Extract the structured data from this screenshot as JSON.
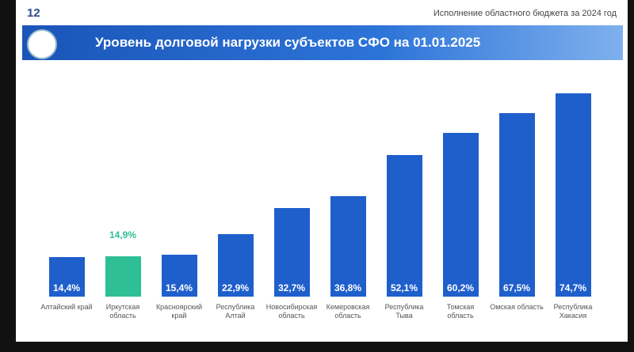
{
  "slide_number": "12",
  "header_note": "Исполнение областного бюджета за 2024 год",
  "chart_data": {
    "type": "bar",
    "title": "Уровень долговой нагрузки субъектов СФО на 01.01.2025",
    "categories": [
      "Алтайский край",
      "Иркутская область",
      "Красноярский край",
      "Республика Алтай",
      "Новосибирская область",
      "Кемеровская область",
      "Республика Тыва",
      "Томская область",
      "Омская область",
      "Республика Хакасия"
    ],
    "values": [
      14.4,
      14.9,
      15.4,
      22.9,
      32.7,
      36.8,
      52.1,
      60.2,
      67.5,
      74.7
    ],
    "value_labels": [
      "14,4%",
      "14,9%",
      "15,4%",
      "22,9%",
      "32,7%",
      "36,8%",
      "52,1%",
      "60,2%",
      "67,5%",
      "74,7%"
    ],
    "colors": [
      "#1f5fcc",
      "#2fbf96",
      "#1f5fcc",
      "#1f5fcc",
      "#1f5fcc",
      "#1f5fcc",
      "#1f5fcc",
      "#1f5fcc",
      "#1f5fcc",
      "#1f5fcc"
    ]
  }
}
